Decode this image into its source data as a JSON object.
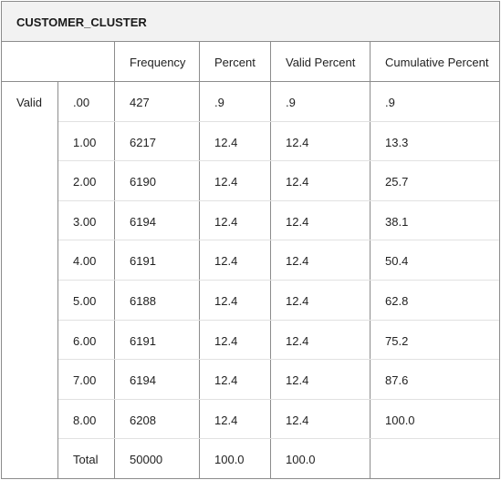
{
  "table": {
    "title": "CUSTOMER_CLUSTER",
    "headers": {
      "frequency": "Frequency",
      "percent": "Percent",
      "valid_percent": "Valid Percent",
      "cumulative_percent": "Cumulative Percent"
    },
    "group_label": "Valid",
    "rows": [
      {
        "label": ".00",
        "frequency": "427",
        "percent": ".9",
        "valid_percent": ".9",
        "cumulative_percent": ".9"
      },
      {
        "label": "1.00",
        "frequency": "6217",
        "percent": "12.4",
        "valid_percent": "12.4",
        "cumulative_percent": "13.3"
      },
      {
        "label": "2.00",
        "frequency": "6190",
        "percent": "12.4",
        "valid_percent": "12.4",
        "cumulative_percent": "25.7"
      },
      {
        "label": "3.00",
        "frequency": "6194",
        "percent": "12.4",
        "valid_percent": "12.4",
        "cumulative_percent": "38.1"
      },
      {
        "label": "4.00",
        "frequency": "6191",
        "percent": "12.4",
        "valid_percent": "12.4",
        "cumulative_percent": "50.4"
      },
      {
        "label": "5.00",
        "frequency": "6188",
        "percent": "12.4",
        "valid_percent": "12.4",
        "cumulative_percent": "62.8"
      },
      {
        "label": "6.00",
        "frequency": "6191",
        "percent": "12.4",
        "valid_percent": "12.4",
        "cumulative_percent": "75.2"
      },
      {
        "label": "7.00",
        "frequency": "6194",
        "percent": "12.4",
        "valid_percent": "12.4",
        "cumulative_percent": "87.6"
      },
      {
        "label": "8.00",
        "frequency": "6208",
        "percent": "12.4",
        "valid_percent": "12.4",
        "cumulative_percent": "100.0"
      },
      {
        "label": "Total",
        "frequency": "50000",
        "percent": "100.0",
        "valid_percent": "100.0",
        "cumulative_percent": ""
      }
    ]
  }
}
